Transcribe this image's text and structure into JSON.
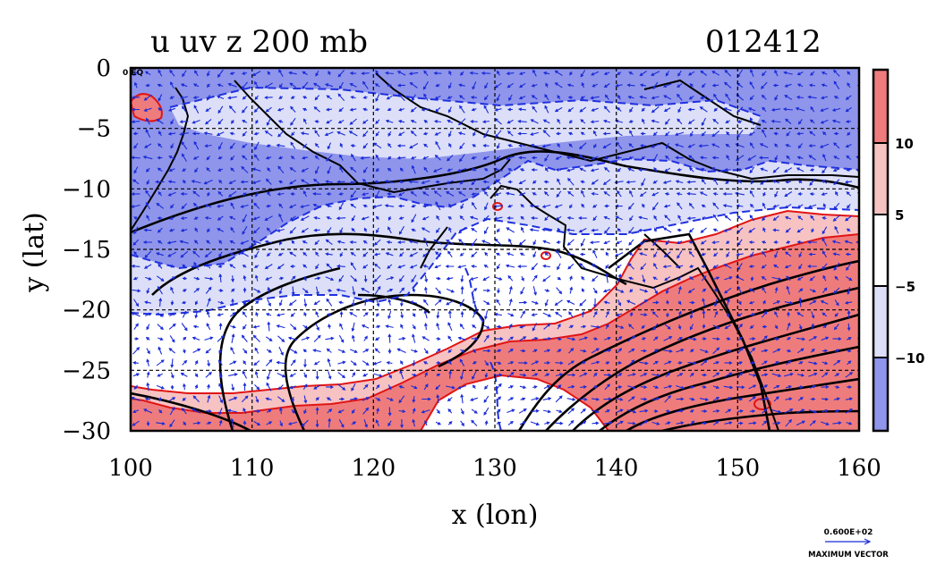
{
  "title": "u uv z 200 mb",
  "date_code": "012412",
  "map_corner_label": "0 EQ",
  "colors": {
    "neg_strong": "#8f95ea",
    "neg_weak": "#dcdff7",
    "neutral": "#ffffff",
    "pos_weak": "#f7c2c2",
    "pos_strong": "#ef7c7c",
    "contour_red": "#e01515",
    "contour_dash_blue": "#2030e0",
    "vector_blue": "#1a2bd8",
    "black": "#000000"
  },
  "colorbar": {
    "labels": [
      "10",
      "5",
      "−5",
      "−10"
    ]
  },
  "vector_legend": {
    "value": "0.600E+02",
    "caption": "MAXIMUM VECTOR"
  },
  "chart_data": {
    "type": "heatmap",
    "variable": "u uv z 200 mb",
    "xlabel": "x (lon)",
    "ylabel": "y (lat)",
    "xlim": [
      100,
      160
    ],
    "ylim": [
      -30,
      0
    ],
    "x_ticks": [
      "100",
      "110",
      "120",
      "130",
      "140",
      "150",
      "160"
    ],
    "x_tick_values": [
      100,
      110,
      120,
      130,
      140,
      150,
      160
    ],
    "y_ticks": [
      "0",
      "−5",
      "−10",
      "−15",
      "−20",
      "−25",
      "−30"
    ],
    "y_tick_values": [
      0,
      -5,
      -10,
      -15,
      -20,
      -25,
      -30
    ],
    "grid": true,
    "colorbar_levels": [
      -10,
      -5,
      5,
      10
    ],
    "vector_max": 60
  }
}
